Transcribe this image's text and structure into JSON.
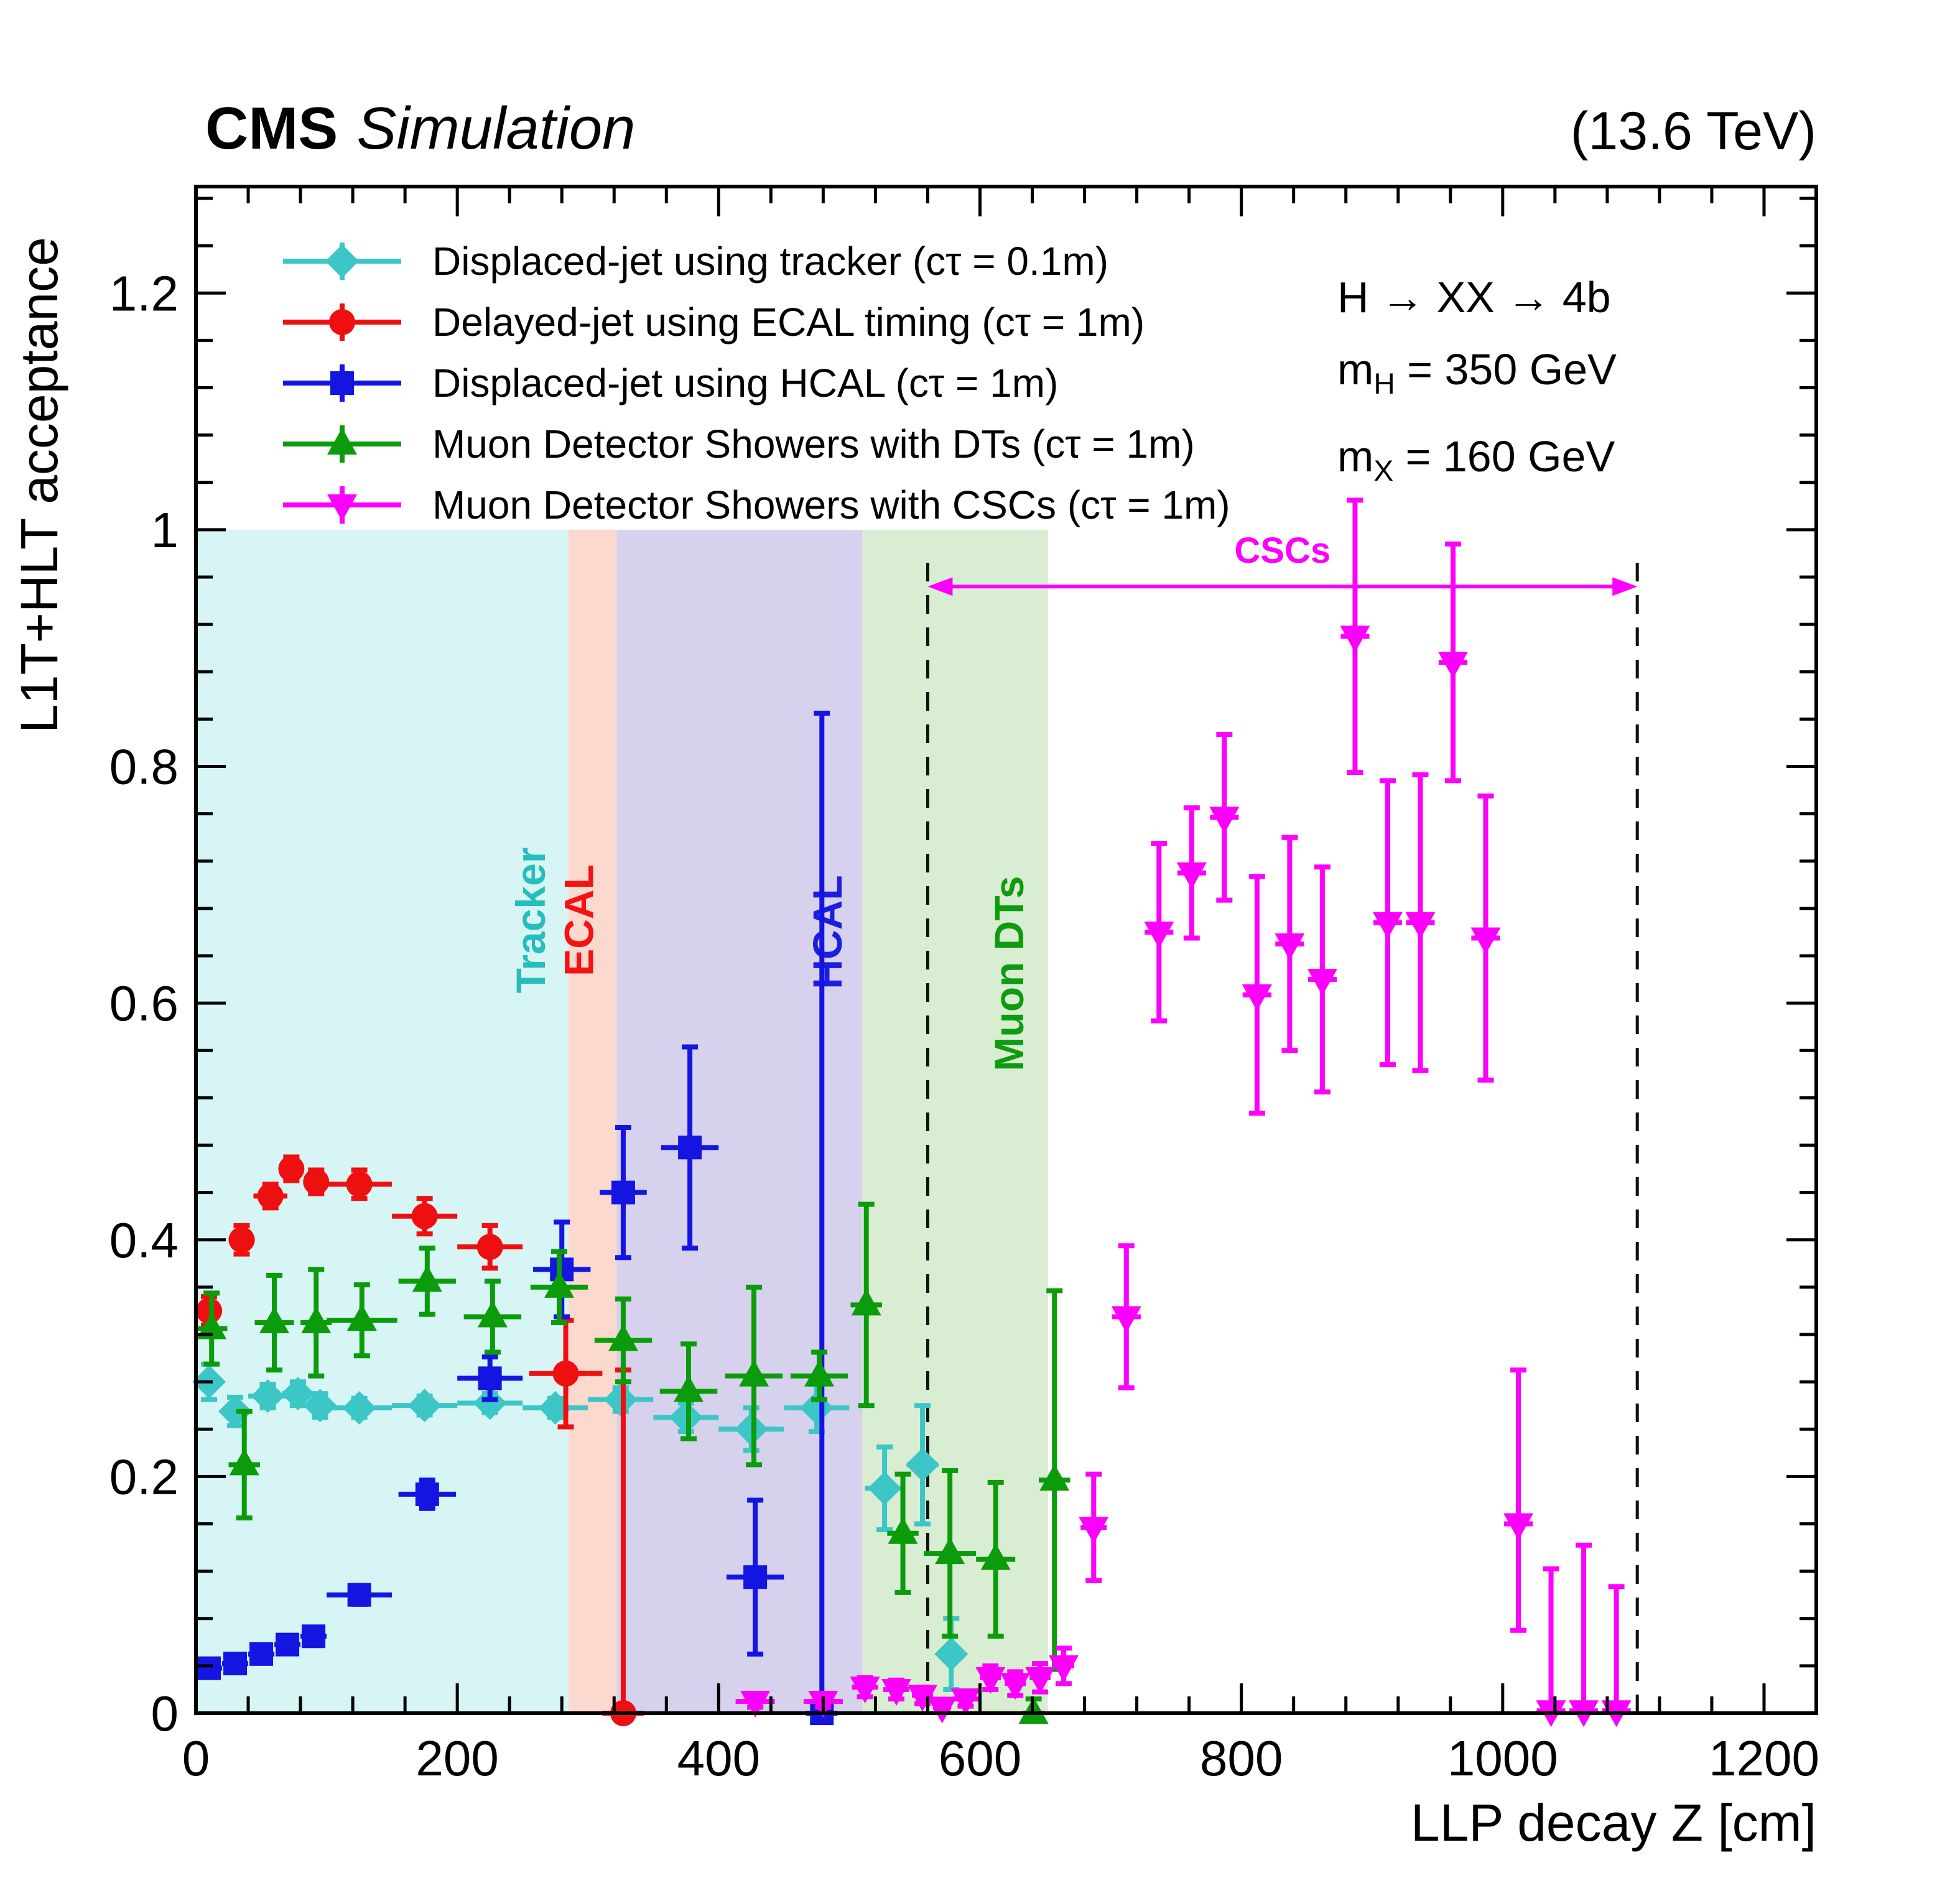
{
  "header": {
    "cms": "CMS",
    "simulation": "Simulation",
    "energy": "(13.6 TeV)"
  },
  "annotations": {
    "process": "H → XX → 4b",
    "mh": {
      "base": "m",
      "sub": "H",
      "rest": " = 350 GeV"
    },
    "mx": {
      "base": "m",
      "sub": "X",
      "rest": " = 160 GeV"
    }
  },
  "chart_data": {
    "type": "scatter",
    "title": "CMS Simulation (13.6 TeV)",
    "xlabel": "LLP decay Z [cm]",
    "ylabel": "L1T+HLT acceptance",
    "xlim": [
      0,
      1240
    ],
    "ylim": [
      0,
      1.29
    ],
    "xticks": [
      0,
      200,
      400,
      600,
      800,
      1000,
      1200
    ],
    "xtick_labels": [
      "0",
      "200",
      "400",
      "600",
      "800",
      "1000",
      "1200"
    ],
    "yticks": [
      0,
      0.2,
      0.4,
      0.6,
      0.8,
      1.0,
      1.2
    ],
    "ytick_labels": [
      "0",
      "0.2",
      "0.4",
      "0.6",
      "0.8",
      "1",
      "1.2"
    ],
    "minor_x": 40,
    "minor_y": 0.04,
    "grid": false,
    "legend_position": "top-left",
    "regions": [
      {
        "label": "Tracker",
        "x0": 0,
        "x1": 285,
        "top": 1.0,
        "fill": "#d7f5f5",
        "label_color": "#27bdbd",
        "label_pos": [
          267,
          0.67
        ]
      },
      {
        "label": "ECAL",
        "x0": 285,
        "x1": 322,
        "top": 1.0,
        "fill": "#fbd9cf",
        "label_color": "#f51212",
        "label_pos": [
          304,
          0.67
        ]
      },
      {
        "label": "HCAL",
        "x0": 322,
        "x1": 510,
        "top": 1.0,
        "fill": "#d6d2ee",
        "label_color": "#1d1de0",
        "label_pos": [
          494,
          0.66
        ]
      },
      {
        "label": "Muon DTs",
        "x0": 510,
        "x1": 652,
        "top": 1.0,
        "fill": "#d9edd3",
        "label_color": "#0f9b0f",
        "label_pos": [
          633,
          0.625
        ]
      }
    ],
    "dashed_lines": [
      560,
      1103
    ],
    "csc_span": {
      "label": "CSCs",
      "x0": 560,
      "x1": 1103,
      "y": 0.952,
      "color": "#fb00fb"
    },
    "series": [
      {
        "id": "tracker",
        "name": "Displaced-jet using tracker (cτ = 0.1m)",
        "color": "#3cc6c6",
        "marker": "diamond",
        "points": [
          [
            10,
            0.28,
            10,
            0.015,
            0.015
          ],
          [
            30,
            0.255,
            10,
            0.012,
            0.012
          ],
          [
            55,
            0.268,
            15,
            0.01,
            0.01
          ],
          [
            78,
            0.27,
            12,
            0.01,
            0.01
          ],
          [
            95,
            0.26,
            5,
            0.01,
            0.01
          ],
          [
            125,
            0.258,
            25,
            0.008,
            0.008
          ],
          [
            175,
            0.26,
            25,
            0.008,
            0.008
          ],
          [
            225,
            0.262,
            25,
            0.008,
            0.008
          ],
          [
            275,
            0.258,
            25,
            0.008,
            0.008
          ],
          [
            325,
            0.265,
            25,
            0.01,
            0.01
          ],
          [
            375,
            0.25,
            25,
            0.012,
            0.012
          ],
          [
            425,
            0.24,
            25,
            0.018,
            0.018
          ],
          [
            475,
            0.258,
            25,
            0.02,
            0.02
          ],
          [
            527,
            0.19,
            15,
            0.035,
            0.035
          ],
          [
            556,
            0.21,
            12,
            0.05,
            0.05
          ],
          [
            578,
            0.05,
            10,
            0.03,
            0.03
          ]
        ]
      },
      {
        "id": "ecal-timing",
        "name": "Delayed-jet using ECAL timing (cτ = 1m)",
        "color": "#ee1010",
        "marker": "circle",
        "points": [
          [
            10,
            0.34,
            10,
            0.012,
            0.012
          ],
          [
            35,
            0.4,
            10,
            0.012,
            0.012
          ],
          [
            57,
            0.437,
            13,
            0.01,
            0.01
          ],
          [
            73,
            0.46,
            8,
            0.01,
            0.01
          ],
          [
            92,
            0.449,
            8,
            0.01,
            0.01
          ],
          [
            125,
            0.447,
            25,
            0.012,
            0.012
          ],
          [
            175,
            0.42,
            25,
            0.015,
            0.015
          ],
          [
            225,
            0.394,
            25,
            0.018,
            0.018
          ],
          [
            283,
            0.287,
            28,
            0.045,
            0.045
          ],
          [
            327,
            0.0,
            16,
            0.0,
            0.29
          ]
        ]
      },
      {
        "id": "hcal",
        "name": "Displaced-jet using HCAL (cτ = 1m)",
        "color": "#1515e2",
        "marker": "square",
        "points": [
          [
            10,
            0.038,
            10,
            0.005,
            0.005
          ],
          [
            30,
            0.042,
            10,
            0.005,
            0.005
          ],
          [
            50,
            0.05,
            10,
            0.006,
            0.006
          ],
          [
            70,
            0.058,
            10,
            0.006,
            0.006
          ],
          [
            90,
            0.065,
            10,
            0.007,
            0.007
          ],
          [
            125,
            0.1,
            25,
            0.008,
            0.008
          ],
          [
            177,
            0.185,
            22,
            0.012,
            0.012
          ],
          [
            225,
            0.283,
            25,
            0.018,
            0.018
          ],
          [
            280,
            0.375,
            22,
            0.04,
            0.04
          ],
          [
            327,
            0.44,
            18,
            0.055,
            0.055
          ],
          [
            378,
            0.478,
            22,
            0.085,
            0.085
          ],
          [
            428,
            0.115,
            22,
            0.065,
            0.065
          ],
          [
            479,
            0.0,
            12,
            0.0,
            0.845
          ]
        ]
      },
      {
        "id": "muon-dt",
        "name": "Muon Detector Showers with DTs (cτ = 1m)",
        "color": "#0b9b0b",
        "marker": "triangle-up",
        "points": [
          [
            12,
            0.325,
            12,
            0.03,
            0.03
          ],
          [
            37,
            0.21,
            12,
            0.045,
            0.045
          ],
          [
            60,
            0.33,
            15,
            0.04,
            0.04
          ],
          [
            92,
            0.33,
            12,
            0.045,
            0.045
          ],
          [
            127,
            0.332,
            27,
            0.03,
            0.03
          ],
          [
            177,
            0.365,
            22,
            0.028,
            0.028
          ],
          [
            227,
            0.335,
            22,
            0.03,
            0.03
          ],
          [
            278,
            0.36,
            22,
            0.03,
            0.03
          ],
          [
            327,
            0.315,
            22,
            0.035,
            0.035
          ],
          [
            377,
            0.272,
            22,
            0.04,
            0.04
          ],
          [
            427,
            0.285,
            22,
            0.075,
            0.075
          ],
          [
            477,
            0.285,
            22,
            0.02,
            0.02
          ],
          [
            513,
            0.345,
            12,
            0.085,
            0.085
          ],
          [
            541,
            0.152,
            12,
            0.05,
            0.05
          ],
          [
            577,
            0.135,
            20,
            0.07,
            0.07
          ],
          [
            612,
            0.13,
            15,
            0.065,
            0.065
          ],
          [
            641,
            0.0,
            8,
            0.0,
            0.012
          ],
          [
            657,
            0.197,
            12,
            0.16,
            0.16
          ]
        ]
      },
      {
        "id": "muon-csc",
        "name": "Muon Detector Showers with CSCs (cτ = 1m)",
        "color": "#fb00fb",
        "marker": "triangle-down",
        "points": [
          [
            428,
            0.01,
            15,
            0.005,
            0.005
          ],
          [
            480,
            0.01,
            15,
            0.005,
            0.005
          ],
          [
            512,
            0.022,
            10,
            0.008,
            0.008
          ],
          [
            536,
            0.02,
            10,
            0.008,
            0.008
          ],
          [
            556,
            0.015,
            8,
            0.007,
            0.007
          ],
          [
            571,
            0.005,
            7,
            0.004,
            0.004
          ],
          [
            589,
            0.012,
            10,
            0.006,
            0.006
          ],
          [
            608,
            0.03,
            8,
            0.01,
            0.01
          ],
          [
            627,
            0.025,
            8,
            0.01,
            0.01
          ],
          [
            646,
            0.03,
            8,
            0.012,
            0.012
          ],
          [
            664,
            0.04,
            8,
            0.015,
            0.015
          ],
          [
            687,
            0.157,
            10,
            0.045,
            0.045
          ],
          [
            712,
            0.335,
            11,
            0.06,
            0.06
          ],
          [
            737,
            0.66,
            11,
            0.075,
            0.075
          ],
          [
            762,
            0.71,
            11,
            0.055,
            0.055
          ],
          [
            787,
            0.757,
            11,
            0.07,
            0.07
          ],
          [
            812,
            0.607,
            11,
            0.1,
            0.1
          ],
          [
            837,
            0.65,
            11,
            0.09,
            0.09
          ],
          [
            862,
            0.62,
            11,
            0.095,
            0.095
          ],
          [
            887,
            0.91,
            11,
            0.115,
            0.115
          ],
          [
            912,
            0.668,
            11,
            0.12,
            0.12
          ],
          [
            937,
            0.668,
            11,
            0.125,
            0.125
          ],
          [
            962,
            0.888,
            11,
            0.1,
            0.1
          ],
          [
            987,
            0.655,
            11,
            0.12,
            0.12
          ],
          [
            1012,
            0.16,
            11,
            0.09,
            0.13
          ],
          [
            1037,
            0.002,
            11,
            0.0,
            0.12
          ],
          [
            1062,
            0.002,
            11,
            0.0,
            0.14
          ],
          [
            1087,
            0.002,
            11,
            0.0,
            0.105
          ]
        ]
      }
    ]
  }
}
